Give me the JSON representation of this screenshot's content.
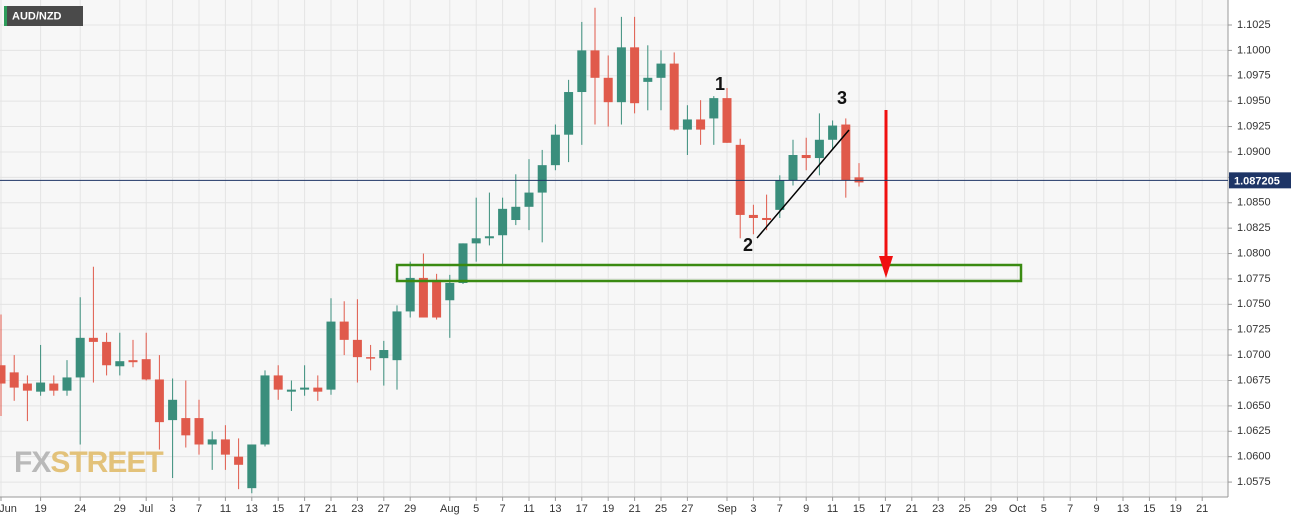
{
  "chart_data": {
    "type": "candlestick",
    "title": "AUD/NZD",
    "logo": {
      "fx": "FX",
      "street": "STREET"
    },
    "categories": [
      "Jun",
      null,
      null,
      "19",
      null,
      null,
      "24",
      null,
      null,
      "29",
      null,
      "Jul",
      null,
      "3",
      null,
      "7",
      null,
      "11",
      null,
      "13",
      null,
      "15",
      null,
      "17",
      null,
      "21",
      null,
      "23",
      null,
      "27",
      null,
      "29",
      null,
      null,
      "Aug",
      null,
      "5",
      null,
      "7",
      null,
      "11",
      null,
      "13",
      null,
      "17",
      null,
      "19",
      null,
      "21",
      null,
      "25",
      null,
      "27",
      null,
      null,
      "Sep",
      null,
      "3",
      null,
      "7",
      null,
      "9",
      null,
      "11",
      null,
      "15",
      null,
      "17",
      null,
      "21",
      null,
      "23",
      null,
      "25",
      null,
      "29",
      null,
      "Oct",
      null,
      "5",
      null,
      "7",
      null,
      "9",
      null,
      "13",
      null,
      "15",
      null,
      "19",
      null,
      "21",
      null
    ],
    "open": [
      1.069,
      1.0683,
      1.0672,
      1.0664,
      1.0672,
      1.0665,
      1.0678,
      1.0717,
      1.0713,
      1.0689,
      1.0695,
      1.0696,
      1.0676,
      1.0636,
      1.0638,
      1.0638,
      1.0612,
      1.0617,
      1.06,
      1.0569,
      1.0612,
      1.068,
      1.0664,
      1.0666,
      1.0668,
      1.0666,
      1.0733,
      1.0715,
      1.0698,
      1.0697,
      1.0695,
      1.0743,
      1.0776,
      1.0774,
      1.0754,
      1.0771,
      1.081,
      1.0815,
      1.0818,
      1.0833,
      1.0846,
      1.086,
      1.0887,
      1.0917,
      1.0959,
      1.1,
      1.0973,
      1.0949,
      1.1003,
      1.0969,
      1.0973,
      1.0987,
      1.0922,
      1.0932,
      1.0933,
      1.0953,
      1.0907,
      1.0838,
      1.0835,
      1.0843,
      1.0872,
      1.0897,
      1.0894,
      1.0912,
      1.0927,
      1.0875,
      null,
      null,
      null,
      null,
      null,
      null,
      null,
      null,
      null,
      null,
      null,
      null,
      null,
      null,
      null,
      null,
      null,
      null,
      null,
      null,
      null,
      null,
      null,
      null,
      null,
      null,
      null
    ],
    "high": [
      1.074,
      1.07,
      1.068,
      1.071,
      1.068,
      1.0695,
      1.0757,
      1.0787,
      1.0722,
      1.0722,
      1.0715,
      1.0722,
      1.07,
      1.0677,
      1.0675,
      1.0656,
      1.0625,
      1.0631,
      1.0618,
      1.0612,
      1.0685,
      1.069,
      1.0675,
      1.069,
      1.068,
      1.0756,
      1.0753,
      1.0755,
      1.071,
      1.0714,
      1.0749,
      1.0792,
      1.08,
      1.078,
      1.0779,
      1.081,
      1.0855,
      1.086,
      1.0855,
      1.0878,
      1.0893,
      1.0902,
      1.0927,
      1.0971,
      1.1028,
      1.1042,
      1.0995,
      1.1033,
      1.1033,
      1.1005,
      1.1,
      1.0998,
      1.0946,
      1.0951,
      1.0955,
      1.0963,
      1.0913,
      1.0848,
      1.0858,
      1.0877,
      1.0912,
      1.0914,
      1.0938,
      1.0931,
      1.0933,
      1.0889,
      null,
      null,
      null,
      null,
      null,
      null,
      null,
      null,
      null,
      null,
      null,
      null,
      null,
      null,
      null,
      null,
      null,
      null,
      null,
      null,
      null,
      null,
      null,
      null,
      null,
      null,
      null
    ],
    "low": [
      1.064,
      1.0655,
      1.0635,
      1.066,
      1.066,
      1.066,
      1.0612,
      1.0673,
      1.068,
      1.068,
      1.0688,
      1.0675,
      1.0607,
      1.0579,
      1.0609,
      1.0602,
      1.0587,
      1.0587,
      1.0568,
      1.0564,
      1.061,
      1.0656,
      1.0645,
      1.066,
      1.0655,
      1.0661,
      1.07,
      1.0673,
      1.0685,
      1.067,
      1.0666,
      1.0737,
      1.0737,
      1.0735,
      1.0717,
      1.077,
      1.0792,
      1.0808,
      1.0788,
      1.0828,
      1.0823,
      1.0811,
      1.0882,
      1.089,
      1.0907,
      1.0927,
      1.0925,
      1.0927,
      1.0938,
      1.0941,
      1.0941,
      1.0921,
      1.0897,
      1.0907,
      1.0907,
      1.0909,
      1.0815,
      1.0819,
      1.0823,
      1.0835,
      1.0867,
      1.0882,
      1.0877,
      1.0902,
      1.0855,
      1.0866,
      null,
      null,
      null,
      null,
      null,
      null,
      null,
      null,
      null,
      null,
      null,
      null,
      null,
      null,
      null,
      null,
      null,
      null,
      null,
      null,
      null,
      null,
      null,
      null,
      null,
      null,
      null
    ],
    "close": [
      1.0672,
      1.0668,
      1.0665,
      1.0673,
      1.0665,
      1.0678,
      1.0717,
      1.0713,
      1.069,
      1.0694,
      1.0693,
      1.0676,
      1.0634,
      1.0656,
      1.0621,
      1.0612,
      1.0617,
      1.0602,
      1.0592,
      1.0612,
      1.068,
      1.0666,
      1.0666,
      1.0668,
      1.0664,
      1.0733,
      1.0715,
      1.0698,
      1.0697,
      1.0705,
      1.0743,
      1.0776,
      1.0737,
      1.0737,
      1.0771,
      1.081,
      1.0815,
      1.0817,
      1.0844,
      1.0846,
      1.086,
      1.0887,
      1.0917,
      1.0959,
      1.1,
      1.0973,
      1.0949,
      1.1003,
      1.0948,
      1.0973,
      1.0987,
      1.0922,
      1.0932,
      1.0922,
      1.0953,
      1.0909,
      1.0838,
      1.0835,
      1.0833,
      1.0872,
      1.0897,
      1.0894,
      1.0912,
      1.0926,
      1.0872,
      1.087,
      null,
      null,
      null,
      null,
      null,
      null,
      null,
      null,
      null,
      null,
      null,
      null,
      null,
      null,
      null,
      null,
      null,
      null,
      null,
      null,
      null,
      null,
      null,
      null,
      null,
      null,
      null
    ],
    "up_color": "#3a8e7c",
    "down_color": "#e05a4b",
    "current_price": 1.087205,
    "current_price_color": "#1e3566",
    "ylim": [
      1.05603,
      1.10496
    ],
    "yticks": [
      1.1025,
      {
        "value": 1.1,
        "label": "1.1000"
      },
      1.0975,
      {
        "value": 1.095,
        "label": "1.0950"
      },
      1.0925,
      {
        "value": 1.09,
        "label": "1.0900"
      },
      1.0875,
      {
        "value": 1.085,
        "label": "1.0850"
      },
      1.0825,
      {
        "value": 1.08,
        "label": "1.0800"
      },
      1.0775,
      {
        "value": 1.075,
        "label": "1.0750"
      },
      1.0725,
      {
        "value": 1.07,
        "label": "1.0700"
      },
      1.0675,
      {
        "value": 1.065,
        "label": "1.0650"
      },
      1.0625,
      {
        "value": 1.06,
        "label": "1.0600"
      },
      1.0575
    ],
    "grid": true,
    "annotations": [
      "1",
      "2",
      "3"
    ]
  }
}
